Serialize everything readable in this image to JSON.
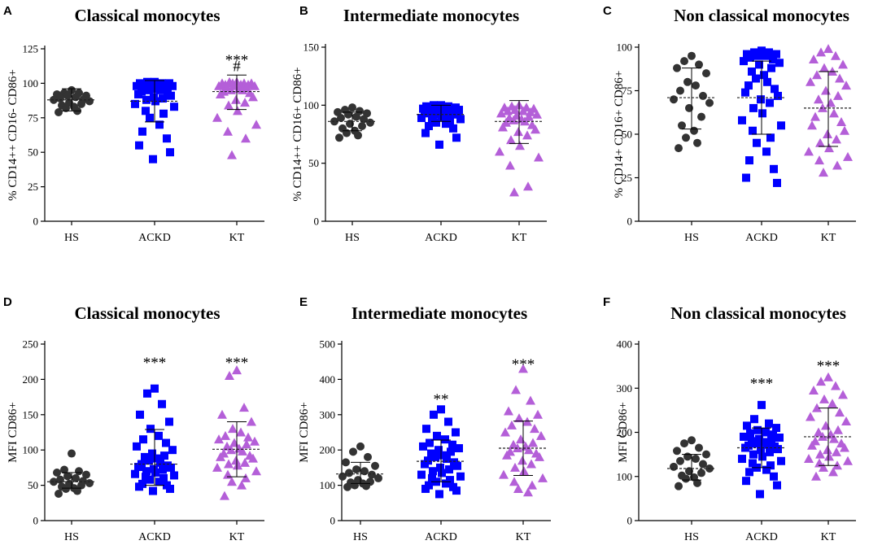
{
  "figure": {
    "colors": {
      "HS": "#333333",
      "ACKD": "#0000ff",
      "KT": "#b45fd8",
      "axis": "#000000"
    },
    "panel_letters": [
      "A",
      "B",
      "C",
      "D",
      "E",
      "F"
    ]
  },
  "chart_data": [
    {
      "type": "scatter",
      "panel": "A",
      "title": "Classical monocytes",
      "ylabel": "% CD14++ CD16- CD86+",
      "ylim": [
        0,
        125
      ],
      "yticks": [
        0,
        25,
        50,
        75,
        100,
        125
      ],
      "ytick_labels": [
        "0",
        "25",
        "50",
        "75",
        "100",
        "125"
      ],
      "categories": [
        "HS",
        "ACKD",
        "KT"
      ],
      "series": [
        {
          "name": "HS",
          "marker": "circle",
          "mean": 88,
          "sd_low": 80,
          "sd_high": 96,
          "values": [
            95,
            93,
            93,
            92,
            91,
            91,
            90,
            89,
            88,
            88,
            87,
            86,
            85,
            84,
            83,
            82,
            80,
            79
          ]
        },
        {
          "name": "ACKD",
          "marker": "square",
          "mean": 87,
          "sd_low": 72,
          "sd_high": 102,
          "values": [
            101,
            101,
            100,
            100,
            100,
            100,
            99,
            99,
            99,
            98,
            98,
            97,
            97,
            96,
            96,
            95,
            95,
            94,
            93,
            92,
            91,
            90,
            89,
            88,
            87,
            85,
            83,
            80,
            78,
            75,
            70,
            65,
            60,
            55,
            50,
            45
          ]
        },
        {
          "name": "KT",
          "marker": "triangle",
          "mean": 94,
          "sd_low": 81,
          "sd_high": 106,
          "values": [
            101,
            101,
            100,
            100,
            100,
            100,
            99,
            99,
            99,
            98,
            98,
            98,
            97,
            97,
            96,
            95,
            95,
            94,
            93,
            92,
            90,
            88,
            86,
            84,
            80,
            75,
            70,
            65,
            60,
            48
          ]
        }
      ],
      "annotations": [
        {
          "category": "KT",
          "text": "***",
          "y": 119
        },
        {
          "category": "KT",
          "text": "#",
          "y": 111
        }
      ]
    },
    {
      "type": "scatter",
      "panel": "B",
      "title": "Intermediate monocytes",
      "ylabel": "% CD14++ CD16+ CD86+",
      "ylim": [
        0,
        150
      ],
      "yticks": [
        0,
        50,
        100,
        150
      ],
      "ytick_labels": [
        "0",
        "50",
        "100",
        "150"
      ],
      "categories": [
        "HS",
        "ACKD",
        "KT"
      ],
      "series": [
        {
          "name": "HS",
          "marker": "circle",
          "mean": 86,
          "sd_low": 78,
          "sd_high": 94,
          "values": [
            98,
            96,
            95,
            94,
            93,
            92,
            90,
            89,
            88,
            86,
            85,
            84,
            82,
            80,
            78,
            76,
            74,
            72
          ]
        },
        {
          "name": "ACKD",
          "marker": "square",
          "mean": 92,
          "sd_low": 86,
          "sd_high": 100,
          "values": [
            100,
            100,
            99,
            99,
            98,
            98,
            98,
            97,
            97,
            97,
            96,
            96,
            96,
            95,
            95,
            95,
            94,
            94,
            93,
            93,
            92,
            92,
            91,
            91,
            90,
            89,
            88,
            87,
            86,
            85,
            84,
            82,
            80,
            76,
            72,
            66
          ]
        },
        {
          "name": "KT",
          "marker": "triangle",
          "mean": 86,
          "sd_low": 67,
          "sd_high": 104,
          "values": [
            100,
            99,
            98,
            98,
            97,
            96,
            95,
            95,
            94,
            93,
            92,
            91,
            90,
            89,
            88,
            87,
            86,
            85,
            83,
            81,
            79,
            77,
            74,
            70,
            65,
            60,
            55,
            48,
            30,
            25
          ]
        }
      ],
      "annotations": []
    },
    {
      "type": "scatter",
      "panel": "C",
      "title": "Non classical monocytes",
      "ylabel": "% CD14+ CD16+ CD86+",
      "ylim": [
        0,
        100
      ],
      "yticks": [
        0,
        25,
        50,
        75,
        100
      ],
      "ytick_labels": [
        "0",
        "25",
        "50",
        "75",
        "100"
      ],
      "categories": [
        "HS",
        "ACKD",
        "KT"
      ],
      "series": [
        {
          "name": "HS",
          "marker": "circle",
          "mean": 71,
          "sd_low": 53,
          "sd_high": 88,
          "values": [
            95,
            92,
            90,
            88,
            85,
            80,
            78,
            75,
            72,
            70,
            68,
            65,
            60,
            55,
            52,
            48,
            45,
            42
          ]
        },
        {
          "name": "ACKD",
          "marker": "square",
          "mean": 71,
          "sd_low": 50,
          "sd_high": 92,
          "values": [
            98,
            97,
            97,
            96,
            96,
            95,
            95,
            94,
            93,
            92,
            91,
            90,
            88,
            86,
            84,
            82,
            80,
            78,
            76,
            74,
            72,
            70,
            68,
            65,
            62,
            58,
            55,
            52,
            48,
            45,
            40,
            35,
            30,
            25,
            22
          ]
        },
        {
          "name": "KT",
          "marker": "triangle",
          "mean": 65,
          "sd_low": 43,
          "sd_high": 86,
          "values": [
            99,
            97,
            95,
            93,
            90,
            88,
            86,
            84,
            82,
            80,
            78,
            75,
            72,
            70,
            68,
            65,
            62,
            60,
            57,
            55,
            52,
            50,
            47,
            45,
            42,
            40,
            37,
            35,
            32,
            28
          ]
        }
      ],
      "annotations": []
    },
    {
      "type": "scatter",
      "panel": "D",
      "title": "Classical monocytes",
      "ylabel": "MFI  CD86+",
      "ylim": [
        0,
        250
      ],
      "yticks": [
        0,
        50,
        100,
        150,
        200,
        250
      ],
      "ytick_labels": [
        "0",
        "50",
        "100",
        "150",
        "200",
        "250"
      ],
      "categories": [
        "HS",
        "ACKD",
        "KT"
      ],
      "series": [
        {
          "name": "HS",
          "marker": "circle",
          "mean": 55,
          "sd_low": 46,
          "sd_high": 68,
          "values": [
            95,
            72,
            70,
            68,
            65,
            63,
            60,
            58,
            56,
            55,
            53,
            52,
            50,
            48,
            46,
            45,
            42,
            38
          ]
        },
        {
          "name": "ACKD",
          "marker": "square",
          "mean": 80,
          "sd_low": 50,
          "sd_high": 129,
          "values": [
            187,
            180,
            165,
            150,
            140,
            130,
            120,
            115,
            110,
            105,
            100,
            95,
            92,
            90,
            88,
            85,
            82,
            80,
            78,
            76,
            75,
            73,
            72,
            70,
            68,
            66,
            64,
            62,
            60,
            58,
            55,
            52,
            50,
            48,
            45,
            42
          ]
        },
        {
          "name": "KT",
          "marker": "triangle",
          "mean": 101,
          "sd_low": 62,
          "sd_high": 140,
          "values": [
            213,
            205,
            160,
            150,
            140,
            130,
            125,
            120,
            118,
            115,
            112,
            110,
            108,
            105,
            102,
            100,
            98,
            95,
            92,
            90,
            88,
            85,
            82,
            80,
            78,
            75,
            70,
            65,
            60,
            55,
            50,
            35
          ]
        }
      ],
      "annotations": [
        {
          "category": "ACKD",
          "text": "***",
          "y": 228
        },
        {
          "category": "KT",
          "text": "***",
          "y": 228
        }
      ]
    },
    {
      "type": "scatter",
      "panel": "E",
      "title": "Intermediate monocytes",
      "ylabel": "MFI CD86+",
      "ylim": [
        0,
        500
      ],
      "yticks": [
        0,
        100,
        200,
        300,
        400,
        500
      ],
      "ytick_labels": [
        "0",
        "100",
        "200",
        "300",
        "400",
        "500"
      ],
      "categories": [
        "HS",
        "ACKD",
        "KT"
      ],
      "series": [
        {
          "name": "HS",
          "marker": "circle",
          "mean": 132,
          "sd_low": 105,
          "sd_high": 165,
          "values": [
            210,
            195,
            180,
            165,
            155,
            145,
            140,
            135,
            130,
            125,
            120,
            115,
            110,
            108,
            105,
            100,
            98,
            95
          ]
        },
        {
          "name": "ACKD",
          "marker": "square",
          "mean": 168,
          "sd_low": 110,
          "sd_high": 228,
          "values": [
            315,
            300,
            280,
            260,
            250,
            240,
            230,
            220,
            215,
            210,
            205,
            200,
            195,
            190,
            185,
            180,
            175,
            170,
            165,
            160,
            155,
            150,
            145,
            140,
            135,
            130,
            125,
            120,
            115,
            110,
            105,
            100,
            95,
            90,
            85,
            75
          ]
        },
        {
          "name": "KT",
          "marker": "triangle",
          "mean": 205,
          "sd_low": 128,
          "sd_high": 282,
          "values": [
            430,
            370,
            340,
            310,
            300,
            290,
            280,
            270,
            260,
            250,
            240,
            230,
            220,
            215,
            210,
            205,
            200,
            195,
            190,
            185,
            180,
            170,
            160,
            150,
            140,
            130,
            120,
            110,
            100,
            90,
            80
          ]
        }
      ],
      "annotations": [
        {
          "category": "ACKD",
          "text": "**",
          "y": 352
        },
        {
          "category": "KT",
          "text": "***",
          "y": 452
        }
      ]
    },
    {
      "type": "scatter",
      "panel": "F",
      "title": "Non classical monocytes",
      "ylabel": "MFI CD86+",
      "ylim": [
        0,
        400
      ],
      "yticks": [
        0,
        100,
        200,
        300,
        400
      ],
      "ytick_labels": [
        "0",
        "100",
        "200",
        "300",
        "400"
      ],
      "categories": [
        "HS",
        "ACKD",
        "KT"
      ],
      "series": [
        {
          "name": "HS",
          "marker": "circle",
          "mean": 118,
          "sd_low": 92,
          "sd_high": 150,
          "values": [
            182,
            175,
            165,
            158,
            150,
            145,
            140,
            135,
            128,
            122,
            118,
            112,
            108,
            102,
            98,
            95,
            85,
            78
          ]
        },
        {
          "name": "ACKD",
          "marker": "square",
          "mean": 165,
          "sd_low": 120,
          "sd_high": 210,
          "values": [
            262,
            230,
            220,
            215,
            210,
            205,
            200,
            198,
            195,
            190,
            188,
            185,
            182,
            180,
            178,
            175,
            172,
            170,
            168,
            165,
            162,
            160,
            155,
            150,
            145,
            140,
            135,
            130,
            125,
            120,
            115,
            110,
            100,
            90,
            80,
            60
          ]
        },
        {
          "name": "KT",
          "marker": "triangle",
          "mean": 190,
          "sd_low": 125,
          "sd_high": 255,
          "values": [
            325,
            315,
            305,
            295,
            285,
            275,
            265,
            255,
            245,
            235,
            225,
            215,
            205,
            200,
            195,
            190,
            185,
            180,
            175,
            170,
            165,
            160,
            155,
            150,
            145,
            140,
            135,
            130,
            125,
            120,
            110,
            100
          ]
        }
      ],
      "annotations": [
        {
          "category": "ACKD",
          "text": "***",
          "y": 318
        },
        {
          "category": "KT",
          "text": "***",
          "y": 358
        }
      ]
    }
  ]
}
